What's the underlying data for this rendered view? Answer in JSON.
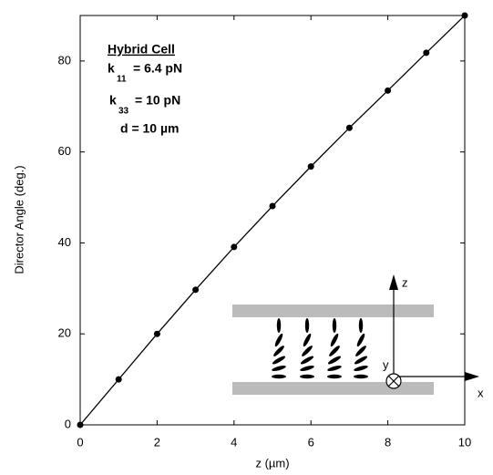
{
  "chart_data": {
    "type": "line",
    "x_label": "z  (µm)",
    "y_label": "Director Angle  (deg.)",
    "x": [
      0,
      1,
      2,
      3,
      4,
      5,
      6,
      7,
      8,
      9,
      10
    ],
    "series": [
      {
        "color": "#000000",
        "values": [
          0,
          10.0,
          20.0,
          29.7,
          39.1,
          48.1,
          56.8,
          65.3,
          73.5,
          81.8,
          90
        ]
      }
    ],
    "xlim": [
      0,
      10
    ],
    "ylim": [
      0,
      90
    ],
    "xticks": [
      0,
      2,
      4,
      6,
      8,
      10
    ],
    "yticks": [
      0,
      20,
      40,
      60,
      80
    ],
    "annotations": [
      {
        "text": "Hybrid Cell"
      },
      {
        "base": "k",
        "sub": "11",
        "text": "= 6.4 pN"
      },
      {
        "base": "k",
        "sub": "33",
        "text": "= 10 pN"
      },
      {
        "text": "d = 10 µm"
      }
    ],
    "inset_axes": {
      "z": "z",
      "y": "y",
      "x": "x"
    }
  }
}
